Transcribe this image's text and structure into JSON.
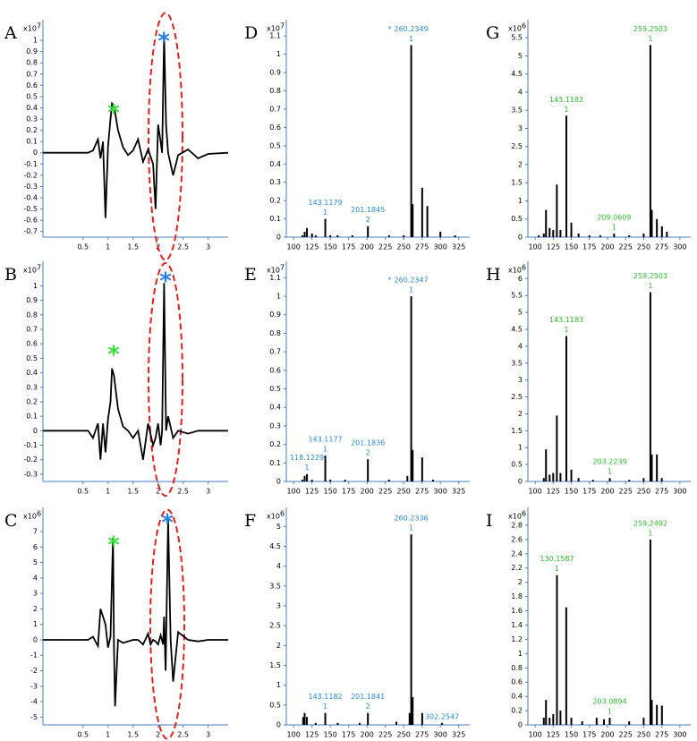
{
  "chart_data": [
    {
      "type": "line",
      "panel": "A",
      "y_multiplier": "x10",
      "y_exponent": 7,
      "color": "#000000",
      "x": [
        -0.3,
        0.3,
        0.6,
        0.7,
        0.8,
        0.85,
        0.9,
        0.95,
        1.0,
        1.05,
        1.08,
        1.12,
        1.2,
        1.3,
        1.4,
        1.5,
        1.6,
        1.7,
        1.8,
        1.9,
        1.95,
        2.0,
        2.05,
        2.08,
        2.12,
        2.16,
        2.2,
        2.3,
        2.4,
        2.6,
        2.8,
        3.0,
        3.4
      ],
      "values": [
        0,
        0,
        0,
        0.02,
        0.12,
        -0.05,
        0.1,
        -0.58,
        0.05,
        0.3,
        0.44,
        0.42,
        0.2,
        0.05,
        -0.02,
        0.02,
        0.12,
        -0.08,
        0.03,
        -0.1,
        -0.5,
        0.25,
        0.1,
        0.0,
        1.05,
        0.25,
        0.0,
        -0.2,
        -0.02,
        0.03,
        -0.05,
        -0.01,
        0
      ],
      "xlim": [
        -0.3,
        3.4
      ],
      "xticks": [
        0.5,
        1,
        1.5,
        2,
        2.5,
        3
      ],
      "ylim": [
        -0.75,
        1.12
      ],
      "yticks": [
        -0.7,
        -0.6,
        -0.5,
        -0.4,
        -0.3,
        -0.2,
        -0.1,
        0,
        0.1,
        0.2,
        0.3,
        0.4,
        0.5,
        0.6,
        0.7,
        0.8,
        0.9,
        1
      ],
      "annotations": [
        {
          "text": "*",
          "color": "#3ddc3d"
        },
        {
          "text": "*",
          "color": "#2a7fe0"
        }
      ]
    },
    {
      "type": "bar",
      "panel": "D",
      "y_multiplier": "x10",
      "y_exponent": 7,
      "color": "#000000",
      "label_color": "#2a8ad6",
      "x": [
        112,
        115,
        118.1,
        125,
        130,
        143.1179,
        150,
        160,
        180,
        201.1845,
        230,
        250,
        260.2349,
        262.2,
        275.2,
        282.2,
        300,
        320
      ],
      "values": [
        0.01,
        0.03,
        0.05,
        0.02,
        0.01,
        0.1,
        0.01,
        0.01,
        0.01,
        0.06,
        0.01,
        0.01,
        1.05,
        0.18,
        0.27,
        0.17,
        0.03,
        0.01
      ],
      "xlim": [
        90,
        340
      ],
      "xticks": [
        100,
        125,
        150,
        175,
        200,
        225,
        250,
        275,
        300,
        325
      ],
      "ylim": [
        0,
        1.15
      ],
      "yticks": [
        0,
        0.1,
        0.2,
        0.3,
        0.4,
        0.5,
        0.6,
        0.7,
        0.8,
        0.9,
        1,
        1.1
      ],
      "peak_labels": [
        {
          "prefix": "*",
          "mz": 260.2349,
          "charge": 1
        },
        {
          "mz": 143.1179,
          "charge": 1
        },
        {
          "mz": 201.1845,
          "charge": 2
        }
      ]
    },
    {
      "type": "bar",
      "panel": "G",
      "y_multiplier": "x10",
      "y_exponent": 6,
      "color": "#000000",
      "label_color": "#2db82d",
      "x": [
        105,
        112,
        115,
        120,
        125,
        130,
        135,
        143.1182,
        150,
        160,
        175,
        190,
        209.0609,
        230,
        250,
        259.2503,
        261.2,
        268.2,
        275.2,
        282
      ],
      "values": [
        0.05,
        0.1,
        0.75,
        0.25,
        0.2,
        1.45,
        0.2,
        3.35,
        0.4,
        0.1,
        0.05,
        0.05,
        0.1,
        0.05,
        0.1,
        5.3,
        0.75,
        0.5,
        0.3,
        0.15
      ],
      "xlim": [
        90,
        315
      ],
      "xticks": [
        100,
        125,
        150,
        175,
        200,
        225,
        250,
        275,
        300
      ],
      "ylim": [
        0,
        5.8
      ],
      "yticks": [
        0,
        0.5,
        1,
        1.5,
        2,
        2.5,
        3,
        3.5,
        4,
        4.5,
        5,
        5.5
      ],
      "peak_labels": [
        {
          "mz": 259.2503,
          "charge": 1
        },
        {
          "mz": 143.1182,
          "charge": 1
        },
        {
          "mz": 209.0609,
          "charge": 1
        }
      ]
    },
    {
      "type": "line",
      "panel": "B",
      "y_multiplier": "x10",
      "y_exponent": 7,
      "color": "#000000",
      "x": [
        -0.3,
        0.3,
        0.6,
        0.7,
        0.8,
        0.85,
        0.9,
        0.95,
        1.0,
        1.05,
        1.08,
        1.12,
        1.2,
        1.3,
        1.4,
        1.5,
        1.6,
        1.7,
        1.8,
        1.9,
        1.95,
        2.0,
        2.05,
        2.08,
        2.12,
        2.16,
        2.2,
        2.3,
        2.4,
        2.6,
        2.8,
        3.0,
        3.4
      ],
      "values": [
        0,
        0,
        0,
        -0.05,
        0.05,
        -0.2,
        0.05,
        -0.15,
        0.08,
        0.2,
        0.43,
        0.38,
        0.15,
        0.03,
        0.0,
        -0.05,
        0.0,
        -0.2,
        0.05,
        -0.1,
        -0.05,
        0.05,
        -0.1,
        0.0,
        1.02,
        0.0,
        0.1,
        -0.05,
        0.0,
        -0.02,
        0,
        0,
        0
      ],
      "xlim": [
        -0.3,
        3.4
      ],
      "xticks": [
        0.5,
        1,
        1.5,
        2,
        2.5,
        3
      ],
      "ylim": [
        -0.35,
        1.12
      ],
      "yticks": [
        -0.3,
        -0.2,
        -0.1,
        0,
        0.1,
        0.2,
        0.3,
        0.4,
        0.5,
        0.6,
        0.7,
        0.8,
        0.9,
        1
      ],
      "annotations": [
        {
          "text": "*",
          "color": "#3ddc3d"
        },
        {
          "text": "*",
          "color": "#2a7fe0"
        }
      ]
    },
    {
      "type": "bar",
      "panel": "E",
      "y_multiplier": "x10",
      "y_exponent": 7,
      "color": "#000000",
      "label_color": "#2a8ad6",
      "x": [
        112,
        115,
        118.1229,
        125,
        143.1177,
        150,
        170,
        201.1836,
        230,
        255,
        260.2347,
        262.2,
        275.2,
        290
      ],
      "values": [
        0.01,
        0.03,
        0.04,
        0.01,
        0.14,
        0.01,
        0.01,
        0.12,
        0.01,
        0.03,
        1.0,
        0.17,
        0.13,
        0.01
      ],
      "xlim": [
        90,
        340
      ],
      "xticks": [
        100,
        125,
        150,
        175,
        200,
        225,
        250,
        275,
        300,
        325
      ],
      "ylim": [
        0,
        1.15
      ],
      "yticks": [
        0,
        0.1,
        0.2,
        0.3,
        0.4,
        0.5,
        0.6,
        0.7,
        0.8,
        0.9,
        1,
        1.1
      ],
      "peak_labels": [
        {
          "prefix": "*",
          "mz": 260.2347,
          "charge": 1
        },
        {
          "mz": 143.1177,
          "charge": 1
        },
        {
          "mz": 201.1836,
          "charge": 2
        },
        {
          "mz": 118.1229,
          "charge": 1
        }
      ]
    },
    {
      "type": "bar",
      "panel": "H",
      "y_multiplier": "x10",
      "y_exponent": 6,
      "color": "#000000",
      "label_color": "#2db82d",
      "x": [
        112,
        115,
        120,
        125,
        130,
        135,
        143.1183,
        150,
        160,
        180,
        203.2239,
        230,
        250,
        259.2503,
        261.2,
        268.2,
        275
      ],
      "values": [
        0.1,
        0.95,
        0.2,
        0.25,
        1.95,
        0.25,
        4.3,
        0.35,
        0.1,
        0.05,
        0.1,
        0.05,
        0.1,
        5.6,
        0.8,
        0.8,
        0.1
      ],
      "xlim": [
        90,
        315
      ],
      "xticks": [
        100,
        125,
        150,
        175,
        200,
        225,
        250,
        275,
        300
      ],
      "ylim": [
        0,
        6.3
      ],
      "yticks": [
        0,
        0.5,
        1,
        1.5,
        2,
        2.5,
        3,
        3.5,
        4,
        4.5,
        5,
        5.5,
        6
      ],
      "peak_labels": [
        {
          "mz": 259.2503,
          "charge": 1
        },
        {
          "mz": 143.1183,
          "charge": 1
        },
        {
          "mz": 203.2239,
          "charge": 1
        }
      ]
    },
    {
      "type": "line",
      "panel": "C",
      "y_multiplier": "x10",
      "y_exponent": 6,
      "color": "#000000",
      "x": [
        -0.3,
        0.3,
        0.6,
        0.7,
        0.8,
        0.85,
        0.9,
        0.95,
        1.0,
        1.05,
        1.1,
        1.12,
        1.14,
        1.2,
        1.3,
        1.5,
        1.6,
        1.7,
        1.8,
        1.85,
        1.9,
        1.95,
        2.0,
        2.05,
        2.1,
        2.12,
        2.15,
        2.2,
        2.25,
        2.3,
        2.4,
        2.6,
        2.8,
        3.0,
        3.4
      ],
      "values": [
        0,
        0,
        0,
        0.2,
        -0.4,
        2,
        1.5,
        1,
        -0.5,
        0.2,
        6.6,
        -0.5,
        -4.3,
        0,
        -0.2,
        0,
        0,
        -0.3,
        0.4,
        -0.3,
        0,
        -0.1,
        -0.3,
        0.3,
        -0.3,
        1.5,
        -2,
        7.8,
        0,
        -2.7,
        0.5,
        0,
        -0.1,
        0,
        0
      ],
      "xlim": [
        -0.3,
        3.4
      ],
      "xticks": [
        0.5,
        1,
        1.5,
        2,
        2.5,
        3
      ],
      "ylim": [
        -5.5,
        8.1
      ],
      "yticks": [
        -5,
        -4,
        -3,
        -2,
        -1,
        0,
        1,
        2,
        3,
        4,
        5,
        6,
        7
      ],
      "annotations": [
        {
          "text": "*",
          "color": "#3ddc3d"
        },
        {
          "text": "*",
          "color": "#2a7fe0"
        }
      ]
    },
    {
      "type": "bar",
      "panel": "F",
      "y_multiplier": "x10",
      "y_exponent": 6,
      "color": "#000000",
      "label_color": "#2a8ad6",
      "x": [
        113,
        115,
        118,
        130,
        143.1182,
        160,
        190,
        201.1841,
        240,
        258,
        260.2336,
        262.2,
        275.2,
        302.2547
      ],
      "values": [
        0.2,
        0.3,
        0.2,
        0.05,
        0.3,
        0.05,
        0.05,
        0.3,
        0.08,
        0.3,
        4.8,
        0.7,
        0.3,
        0.05
      ],
      "xlim": [
        90,
        340
      ],
      "xticks": [
        100,
        125,
        150,
        175,
        200,
        225,
        250,
        275,
        300,
        325
      ],
      "ylim": [
        0,
        5.3
      ],
      "yticks": [
        0,
        0.5,
        1,
        1.5,
        2,
        2.5,
        3,
        3.5,
        4,
        4.5,
        5
      ],
      "peak_labels": [
        {
          "mz": 260.2336,
          "charge": 1
        },
        {
          "mz": 143.1182,
          "charge": 1
        },
        {
          "mz": 201.1841,
          "charge": 2
        },
        {
          "mz": 302.2547
        }
      ]
    },
    {
      "type": "bar",
      "panel": "I",
      "y_multiplier": "x10",
      "y_exponent": 6,
      "color": "#000000",
      "label_color": "#2db82d",
      "x": [
        112,
        115,
        120,
        125,
        130.1587,
        135,
        143,
        150,
        165,
        185,
        195,
        203.0894,
        230,
        250,
        259.2492,
        261.2,
        268.2,
        275.2
      ],
      "values": [
        0.1,
        0.35,
        0.1,
        0.15,
        2.1,
        0.2,
        1.65,
        0.1,
        0.05,
        0.1,
        0.08,
        0.1,
        0.05,
        0.1,
        2.6,
        0.35,
        0.28,
        0.27
      ],
      "xlim": [
        90,
        315
      ],
      "xticks": [
        100,
        125,
        150,
        175,
        200,
        225,
        250,
        275,
        300
      ],
      "ylim": [
        0,
        2.95
      ],
      "yticks": [
        0,
        0.2,
        0.4,
        0.6,
        0.8,
        1,
        1.2,
        1.4,
        1.6,
        1.8,
        2,
        2.2,
        2.4,
        2.6,
        2.8
      ],
      "peak_labels": [
        {
          "mz": 259.2492,
          "charge": 1
        },
        {
          "mz": 130.1587,
          "charge": 1
        },
        {
          "mz": 203.0894,
          "charge": 1
        }
      ]
    }
  ]
}
